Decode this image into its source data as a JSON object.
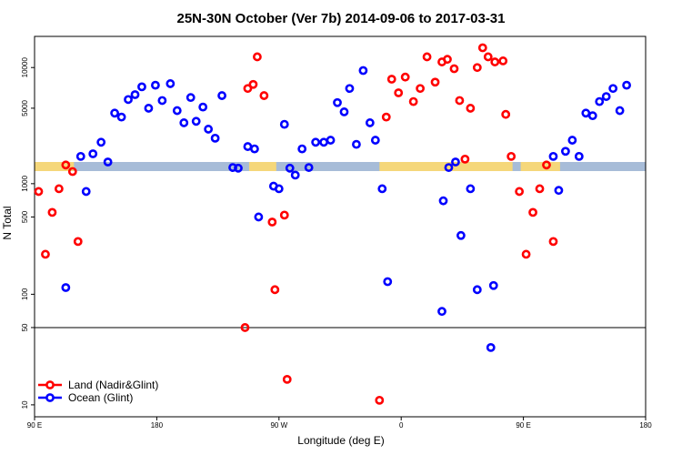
{
  "chart_data": {
    "type": "scatter",
    "title": "25N-30N October (Ver 7b)   2014-09-06 to 2017-03-31",
    "xlabel": "Longitude (deg E)",
    "ylabel": "N Total",
    "x_tick_labels": [
      "90 E",
      "180",
      "90 W",
      "0",
      "90 E",
      "180"
    ],
    "x_ticks": [
      90,
      180,
      270,
      360,
      450,
      540
    ],
    "xlim": [
      90,
      540
    ],
    "y_scale": "log",
    "y_ticks_upper": [
      5000,
      10000
    ],
    "y_ticks_lower": [
      10,
      50,
      100,
      500,
      1000
    ],
    "land_mask_colors": {
      "land": "#f5d77a",
      "ocean": "#a7bcd8"
    },
    "series": [
      {
        "name": "Land (Nadir&Glint)",
        "color": "#ff0000",
        "points": [
          {
            "x": 93,
            "y": 850
          },
          {
            "x": 98,
            "y": 230
          },
          {
            "x": 103,
            "y": 550
          },
          {
            "x": 108,
            "y": 900
          },
          {
            "x": 113,
            "y": 1900
          },
          {
            "x": 118,
            "y": 1700
          },
          {
            "x": 122,
            "y": 300
          },
          {
            "x": 245,
            "y": 50
          },
          {
            "x": 247,
            "y": 7000
          },
          {
            "x": 251,
            "y": 7500
          },
          {
            "x": 254,
            "y": 12000
          },
          {
            "x": 259,
            "y": 6200
          },
          {
            "x": 265,
            "y": 450
          },
          {
            "x": 267,
            "y": 110
          },
          {
            "x": 274,
            "y": 520
          },
          {
            "x": 276,
            "y": 17
          },
          {
            "x": 344,
            "y": 11
          },
          {
            "x": 349,
            "y": 4300
          },
          {
            "x": 353,
            "y": 8200
          },
          {
            "x": 358,
            "y": 6500
          },
          {
            "x": 363,
            "y": 8500
          },
          {
            "x": 369,
            "y": 5600
          },
          {
            "x": 374,
            "y": 7000
          },
          {
            "x": 379,
            "y": 12000
          },
          {
            "x": 385,
            "y": 7800
          },
          {
            "x": 390,
            "y": 11000
          },
          {
            "x": 394,
            "y": 11500
          },
          {
            "x": 399,
            "y": 9800
          },
          {
            "x": 403,
            "y": 5700
          },
          {
            "x": 407,
            "y": 2100
          },
          {
            "x": 411,
            "y": 5000
          },
          {
            "x": 416,
            "y": 10000
          },
          {
            "x": 420,
            "y": 14000
          },
          {
            "x": 424,
            "y": 12000
          },
          {
            "x": 429,
            "y": 11000
          },
          {
            "x": 435,
            "y": 11200
          },
          {
            "x": 437,
            "y": 4500
          },
          {
            "x": 441,
            "y": 2200
          },
          {
            "x": 447,
            "y": 850
          },
          {
            "x": 452,
            "y": 230
          },
          {
            "x": 457,
            "y": 550
          },
          {
            "x": 462,
            "y": 900
          },
          {
            "x": 467,
            "y": 1900
          },
          {
            "x": 472,
            "y": 300
          }
        ]
      },
      {
        "name": "Ocean (Glint)",
        "color": "#0000ff",
        "points": [
          {
            "x": 113,
            "y": 115
          },
          {
            "x": 124,
            "y": 2200
          },
          {
            "x": 128,
            "y": 850
          },
          {
            "x": 133,
            "y": 2300
          },
          {
            "x": 139,
            "y": 2800
          },
          {
            "x": 144,
            "y": 2000
          },
          {
            "x": 149,
            "y": 4600
          },
          {
            "x": 154,
            "y": 4300
          },
          {
            "x": 159,
            "y": 5800
          },
          {
            "x": 164,
            "y": 6300
          },
          {
            "x": 169,
            "y": 7200
          },
          {
            "x": 174,
            "y": 5000
          },
          {
            "x": 179,
            "y": 7400
          },
          {
            "x": 184,
            "y": 5700
          },
          {
            "x": 190,
            "y": 7600
          },
          {
            "x": 195,
            "y": 4800
          },
          {
            "x": 200,
            "y": 3900
          },
          {
            "x": 205,
            "y": 6000
          },
          {
            "x": 209,
            "y": 4000
          },
          {
            "x": 214,
            "y": 5100
          },
          {
            "x": 218,
            "y": 3500
          },
          {
            "x": 223,
            "y": 3000
          },
          {
            "x": 228,
            "y": 6200
          },
          {
            "x": 236,
            "y": 1400
          },
          {
            "x": 240,
            "y": 1800
          },
          {
            "x": 247,
            "y": 2600
          },
          {
            "x": 252,
            "y": 2500
          },
          {
            "x": 255,
            "y": 500
          },
          {
            "x": 266,
            "y": 950
          },
          {
            "x": 270,
            "y": 900
          },
          {
            "x": 274,
            "y": 3800
          },
          {
            "x": 278,
            "y": 1800
          },
          {
            "x": 282,
            "y": 1600
          },
          {
            "x": 287,
            "y": 2500
          },
          {
            "x": 292,
            "y": 1400
          },
          {
            "x": 297,
            "y": 2800
          },
          {
            "x": 303,
            "y": 2800
          },
          {
            "x": 308,
            "y": 2900
          },
          {
            "x": 313,
            "y": 5500
          },
          {
            "x": 318,
            "y": 4700
          },
          {
            "x": 322,
            "y": 7000
          },
          {
            "x": 327,
            "y": 2700
          },
          {
            "x": 332,
            "y": 9500
          },
          {
            "x": 337,
            "y": 3900
          },
          {
            "x": 341,
            "y": 2900
          },
          {
            "x": 346,
            "y": 900
          },
          {
            "x": 350,
            "y": 130
          },
          {
            "x": 390,
            "y": 70
          },
          {
            "x": 391,
            "y": 700
          },
          {
            "x": 395,
            "y": 1400
          },
          {
            "x": 400,
            "y": 2000
          },
          {
            "x": 404,
            "y": 340
          },
          {
            "x": 411,
            "y": 900
          },
          {
            "x": 416,
            "y": 110
          },
          {
            "x": 426,
            "y": 33
          },
          {
            "x": 428,
            "y": 120
          },
          {
            "x": 472,
            "y": 2200
          },
          {
            "x": 476,
            "y": 870
          },
          {
            "x": 481,
            "y": 2400
          },
          {
            "x": 486,
            "y": 2900
          },
          {
            "x": 491,
            "y": 2200
          },
          {
            "x": 496,
            "y": 4600
          },
          {
            "x": 501,
            "y": 4400
          },
          {
            "x": 506,
            "y": 5600
          },
          {
            "x": 511,
            "y": 6100
          },
          {
            "x": 516,
            "y": 7000
          },
          {
            "x": 521,
            "y": 4800
          },
          {
            "x": 526,
            "y": 7400
          }
        ]
      }
    ]
  }
}
